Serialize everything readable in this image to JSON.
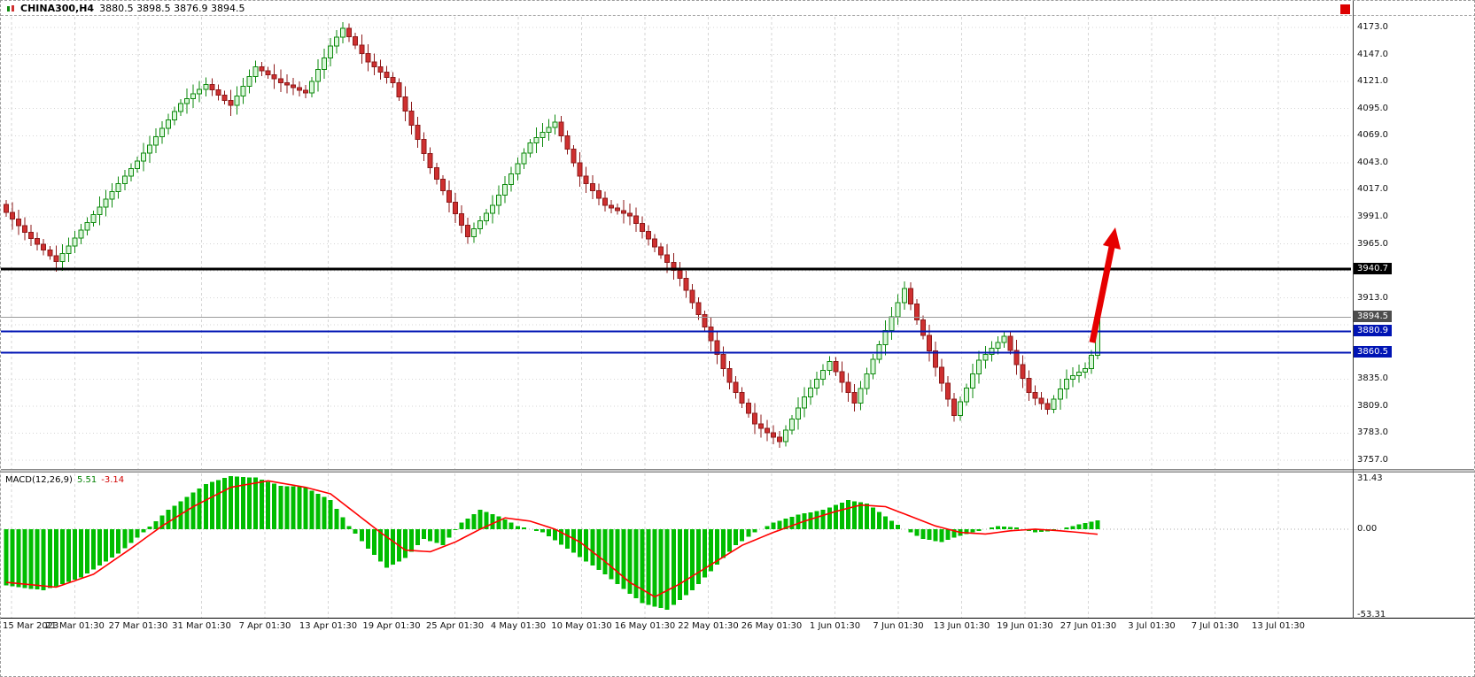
{
  "window": {
    "symbol_period": "CHINA300,H4",
    "ohlc_text": "3880.5 3898.5 3876.9 3894.5"
  },
  "price_axis": {
    "ticks": [
      "4173.0",
      "4147.0",
      "4121.0",
      "4095.0",
      "4069.0",
      "4043.0",
      "4017.0",
      "3991.0",
      "3965.0",
      "3913.0",
      "3835.0",
      "3809.0",
      "3783.0",
      "3757.0"
    ],
    "badges": [
      {
        "label": "3940.7",
        "bg": "#000000"
      },
      {
        "label": "3894.5",
        "bg": "#4d4d4d"
      },
      {
        "label": "3880.9",
        "bg": "#0014b4"
      },
      {
        "label": "3860.5",
        "bg": "#0014b4"
      }
    ]
  },
  "time_axis": {
    "labels": [
      "15 Mar 2023",
      "21 Mar 01:30",
      "27 Mar 01:30",
      "31 Mar 01:30",
      "7 Apr 01:30",
      "13 Apr 01:30",
      "19 Apr 01:30",
      "25 Apr 01:30",
      "4 May 01:30",
      "10 May 01:30",
      "16 May 01:30",
      "22 May 01:30",
      "26 May 01:30",
      "1 Jun 01:30",
      "7 Jun 01:30",
      "13 Jun 01:30",
      "19 Jun 01:30",
      "27 Jun 01:30",
      "3 Jul 01:30",
      "7 Jul 01:30",
      "13 Jul 01:30"
    ]
  },
  "macd_panel": {
    "label": "MACD(12,26,9)",
    "macd_value": "5.51",
    "signal_value": "-3.14",
    "axis_labels": [
      "31.43",
      "0.00",
      "-53.31"
    ]
  },
  "annotations": {
    "arrow_color": "#e60000",
    "marker_color": "#dd0000"
  },
  "chart_data": {
    "type": "candlestick",
    "symbol": "CHINA300",
    "timeframe": "H4",
    "title": "CHINA300,H4 3880.5 3898.5 3876.9 3894.5",
    "last_candle_ohlc": {
      "open": 3880.5,
      "high": 3898.5,
      "low": 3876.9,
      "close": 3894.5
    },
    "ylim": [
      3749,
      4183
    ],
    "price_tick_min": 3757,
    "price_tick_max": 4173,
    "price_ticks_step": 26,
    "candle_count": 176,
    "first_open": 4003,
    "wick_extent": 6,
    "close_waypoints": [
      [
        0,
        3995
      ],
      [
        4,
        3970
      ],
      [
        8,
        3948
      ],
      [
        12,
        3978
      ],
      [
        16,
        4008
      ],
      [
        22,
        4052
      ],
      [
        28,
        4100
      ],
      [
        32,
        4118
      ],
      [
        36,
        4098
      ],
      [
        40,
        4135
      ],
      [
        44,
        4120
      ],
      [
        48,
        4110
      ],
      [
        52,
        4155
      ],
      [
        54,
        4172
      ],
      [
        58,
        4140
      ],
      [
        62,
        4120
      ],
      [
        68,
        4038
      ],
      [
        74,
        3972
      ],
      [
        78,
        4002
      ],
      [
        84,
        4062
      ],
      [
        88,
        4082
      ],
      [
        92,
        4030
      ],
      [
        96,
        4002
      ],
      [
        100,
        3992
      ],
      [
        104,
        3962
      ],
      [
        108,
        3932
      ],
      [
        112,
        3885
      ],
      [
        116,
        3832
      ],
      [
        120,
        3792
      ],
      [
        124,
        3775
      ],
      [
        128,
        3818
      ],
      [
        132,
        3852
      ],
      [
        136,
        3812
      ],
      [
        140,
        3868
      ],
      [
        144,
        3922
      ],
      [
        148,
        3862
      ],
      [
        152,
        3800
      ],
      [
        156,
        3853
      ],
      [
        160,
        3876
      ],
      [
        164,
        3822
      ],
      [
        167,
        3806
      ],
      [
        170,
        3835
      ],
      [
        173,
        3845
      ],
      [
        174,
        3858
      ],
      [
        175,
        3894.5
      ]
    ],
    "levels": [
      {
        "price": 3940.7,
        "color": "#000000",
        "width": 3
      },
      {
        "price": 3894.5,
        "color": "#9b9b9b",
        "width": 1
      },
      {
        "price": 3880.9,
        "color": "#0014b4",
        "width": 2
      },
      {
        "price": 3860.5,
        "color": "#0014b4",
        "width": 2
      }
    ],
    "macd": {
      "type": "histogram+line",
      "params": "12,26,9",
      "current_macd": 5.51,
      "current_signal": -3.14,
      "axis_range": [
        -53.31,
        31.43
      ],
      "hist_waypoints": [
        [
          0,
          -35
        ],
        [
          6,
          -38
        ],
        [
          12,
          -30
        ],
        [
          18,
          -15
        ],
        [
          22,
          -2
        ],
        [
          26,
          12
        ],
        [
          32,
          28
        ],
        [
          36,
          33
        ],
        [
          40,
          32
        ],
        [
          44,
          27
        ],
        [
          48,
          26
        ],
        [
          52,
          18
        ],
        [
          55,
          2
        ],
        [
          58,
          -12
        ],
        [
          61,
          -24
        ],
        [
          64,
          -18
        ],
        [
          67,
          -6
        ],
        [
          70,
          -10
        ],
        [
          73,
          4
        ],
        [
          76,
          12
        ],
        [
          79,
          8
        ],
        [
          82,
          2
        ],
        [
          86,
          -2
        ],
        [
          90,
          -12
        ],
        [
          96,
          -28
        ],
        [
          102,
          -46
        ],
        [
          106,
          -50
        ],
        [
          110,
          -38
        ],
        [
          113,
          -26
        ],
        [
          117,
          -10
        ],
        [
          120,
          -2
        ],
        [
          123,
          4
        ],
        [
          127,
          9
        ],
        [
          131,
          12
        ],
        [
          135,
          18
        ],
        [
          138,
          16
        ],
        [
          141,
          8
        ],
        [
          144,
          0
        ],
        [
          147,
          -6
        ],
        [
          150,
          -8
        ],
        [
          153,
          -4
        ],
        [
          156,
          -1
        ],
        [
          159,
          2
        ],
        [
          162,
          1
        ],
        [
          165,
          -2
        ],
        [
          168,
          -1
        ],
        [
          170,
          1
        ],
        [
          172,
          3
        ],
        [
          175,
          5.5
        ]
      ],
      "signal_waypoints": [
        [
          0,
          -33
        ],
        [
          8,
          -36
        ],
        [
          14,
          -28
        ],
        [
          20,
          -12
        ],
        [
          25,
          2
        ],
        [
          30,
          14
        ],
        [
          36,
          26
        ],
        [
          42,
          30
        ],
        [
          48,
          26
        ],
        [
          52,
          22
        ],
        [
          56,
          10
        ],
        [
          60,
          -2
        ],
        [
          64,
          -13
        ],
        [
          68,
          -14
        ],
        [
          72,
          -8
        ],
        [
          76,
          0
        ],
        [
          80,
          7
        ],
        [
          84,
          5
        ],
        [
          88,
          0
        ],
        [
          92,
          -8
        ],
        [
          96,
          -20
        ],
        [
          100,
          -33
        ],
        [
          104,
          -42
        ],
        [
          108,
          -34
        ],
        [
          113,
          -22
        ],
        [
          118,
          -10
        ],
        [
          123,
          -2
        ],
        [
          128,
          5
        ],
        [
          133,
          11
        ],
        [
          137,
          15
        ],
        [
          141,
          14
        ],
        [
          145,
          8
        ],
        [
          149,
          2
        ],
        [
          153,
          -2
        ],
        [
          157,
          -3
        ],
        [
          161,
          -1
        ],
        [
          165,
          0
        ],
        [
          169,
          -1
        ],
        [
          172,
          -2
        ],
        [
          175,
          -3.14
        ]
      ]
    },
    "style": {
      "up_fill": "#d9f7d9",
      "up_border": "#0e8a0e",
      "down_fill": "#cf3030",
      "down_border": "#8d1a1a",
      "hist_color": "#00bd00",
      "signal_color": "#ff0000",
      "grid_color": "#d6d6d6",
      "zero_line_color": "#a8a8a8"
    }
  }
}
